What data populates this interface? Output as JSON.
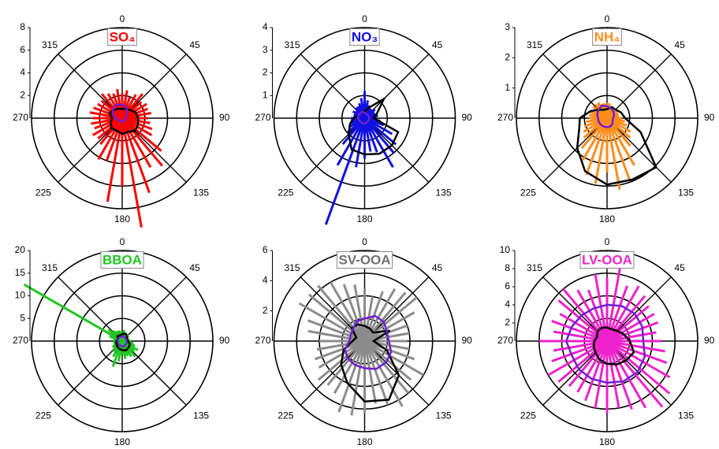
{
  "chart_data": [
    {
      "type": "polar",
      "title": "SO₄",
      "title_color": "#ff0000",
      "rlim": [
        0,
        8
      ],
      "rticks": [
        2,
        4,
        6,
        8
      ],
      "thetaticks": [
        0,
        45,
        90,
        135,
        180,
        225,
        270,
        315
      ],
      "series": [
        {
          "mode": "spikes",
          "color": "#ff0000",
          "theta": [
            0,
            10,
            20,
            30,
            40,
            50,
            60,
            70,
            80,
            90,
            100,
            110,
            120,
            130,
            140,
            150,
            160,
            170,
            180,
            190,
            200,
            210,
            220,
            230,
            240,
            250,
            260,
            270,
            280,
            290,
            300,
            310,
            320,
            330,
            340,
            350
          ],
          "values": [
            2.2,
            2.5,
            2.0,
            2.4,
            2.8,
            2.2,
            2.5,
            2.4,
            2.6,
            2.3,
            2.5,
            2.8,
            3.0,
            4.5,
            5.5,
            5.0,
            7.0,
            9.8,
            6.0,
            7.5,
            4.0,
            4.2,
            3.0,
            2.8,
            3.0,
            2.6,
            2.8,
            2.6,
            2.9,
            2.7,
            2.5,
            2.4,
            2.8,
            2.5,
            2.3,
            2.6
          ]
        },
        {
          "mode": "line",
          "color": "#000000",
          "theta": [
            0,
            22.5,
            45,
            67.5,
            90,
            112.5,
            135,
            157.5,
            180,
            202.5,
            225,
            247.5,
            270,
            292.5,
            315,
            337.5
          ],
          "values": [
            0.8,
            0.9,
            1.0,
            1.3,
            1.4,
            1.5,
            1.6,
            1.3,
            1.4,
            1.2,
            1.3,
            1.1,
            0.9,
            1.2,
            1.0,
            0.9
          ]
        },
        {
          "mode": "line",
          "color": "#7020d0",
          "theta": [
            0,
            22.5,
            45,
            67.5,
            90,
            112.5,
            135,
            157.5,
            180,
            202.5,
            225,
            247.5,
            270,
            292.5,
            315,
            337.5
          ],
          "values": [
            1.2,
            1.0,
            0.6,
            0.4,
            0.3,
            0.3,
            0.3,
            0.3,
            0.3,
            0.3,
            0.3,
            0.4,
            0.6,
            0.9,
            1.1,
            1.3
          ]
        }
      ]
    },
    {
      "type": "polar",
      "title": "NO₃",
      "title_color": "#1010e0",
      "rlim": [
        0,
        4
      ],
      "rticks": [
        1,
        2,
        3,
        4
      ],
      "thetaticks": [
        0,
        45,
        90,
        135,
        180,
        225,
        270,
        315
      ],
      "series": [
        {
          "mode": "spikes",
          "color": "#1010e0",
          "theta": [
            0,
            10,
            20,
            30,
            40,
            50,
            60,
            70,
            80,
            90,
            100,
            110,
            120,
            130,
            140,
            150,
            160,
            170,
            180,
            190,
            200,
            210,
            220,
            230,
            240,
            250,
            260,
            270,
            280,
            290,
            300,
            310,
            320,
            330,
            340,
            350
          ],
          "values": [
            1.2,
            0.8,
            0.6,
            0.5,
            0.5,
            0.6,
            0.5,
            0.5,
            0.6,
            0.5,
            0.7,
            0.9,
            1.4,
            1.8,
            2.0,
            2.5,
            1.6,
            1.5,
            1.8,
            2.2,
            5.0,
            2.4,
            1.5,
            1.0,
            0.8,
            0.7,
            0.6,
            0.6,
            0.5,
            0.5,
            0.6,
            0.5,
            0.6,
            0.6,
            0.7,
            0.9
          ]
        },
        {
          "mode": "line",
          "color": "#000000",
          "theta": [
            0,
            22.5,
            45,
            67.5,
            90,
            112.5,
            135,
            157.5,
            180,
            202.5,
            225,
            247.5,
            270,
            292.5,
            315,
            337.5
          ],
          "values": [
            0.3,
            0.5,
            1.2,
            0.6,
            0.4,
            1.6,
            1.7,
            1.7,
            1.6,
            1.5,
            1.0,
            0.7,
            0.5,
            0.3,
            0.3,
            0.3
          ]
        },
        {
          "mode": "line",
          "color": "#7020d0",
          "theta": [
            0,
            22.5,
            45,
            67.5,
            90,
            112.5,
            135,
            157.5,
            180,
            202.5,
            225,
            247.5,
            270,
            292.5,
            315,
            337.5
          ],
          "values": [
            0.25,
            0.2,
            0.2,
            0.2,
            0.2,
            0.2,
            0.2,
            0.2,
            0.25,
            0.25,
            0.25,
            0.25,
            0.3,
            0.3,
            0.3,
            0.3
          ]
        }
      ]
    },
    {
      "type": "polar",
      "title": "NH₄",
      "title_color": "#ff8c1a",
      "rlim": [
        0,
        3
      ],
      "rticks": [
        1,
        2,
        3
      ],
      "thetaticks": [
        0,
        45,
        90,
        135,
        180,
        225,
        270,
        315
      ],
      "series": [
        {
          "mode": "spikes",
          "color": "#ff8c1a",
          "theta": [
            0,
            10,
            20,
            30,
            40,
            50,
            60,
            70,
            80,
            90,
            100,
            110,
            120,
            130,
            140,
            150,
            160,
            170,
            180,
            190,
            200,
            210,
            220,
            230,
            240,
            250,
            260,
            270,
            280,
            290,
            300,
            310,
            320,
            330,
            340,
            350
          ],
          "values": [
            0.5,
            0.5,
            0.4,
            0.4,
            0.4,
            0.4,
            0.4,
            0.4,
            0.4,
            0.5,
            0.6,
            0.7,
            0.9,
            1.0,
            1.2,
            1.8,
            2.2,
            2.4,
            1.8,
            2.2,
            2.0,
            1.6,
            1.3,
            1.0,
            0.9,
            0.8,
            0.7,
            0.6,
            0.6,
            0.6,
            0.5,
            0.6,
            0.6,
            0.6,
            0.5,
            0.5
          ]
        },
        {
          "mode": "line",
          "color": "#000000",
          "theta": [
            0,
            22.5,
            45,
            67.5,
            90,
            112.5,
            135,
            157.5,
            180,
            202.5,
            225,
            247.5,
            270,
            292.5,
            315,
            337.5
          ],
          "values": [
            0.3,
            0.4,
            0.4,
            0.5,
            0.6,
            1.2,
            2.3,
            2.2,
            2.2,
            1.9,
            1.4,
            1.0,
            0.9,
            0.6,
            0.4,
            0.3
          ]
        },
        {
          "mode": "line",
          "color": "#7020d0",
          "theta": [
            0,
            22.5,
            45,
            67.5,
            90,
            112.5,
            135,
            157.5,
            180,
            202.5,
            225,
            247.5,
            270,
            292.5,
            315,
            337.5
          ],
          "values": [
            0.4,
            0.35,
            0.3,
            0.25,
            0.2,
            0.2,
            0.25,
            0.3,
            0.3,
            0.3,
            0.3,
            0.3,
            0.3,
            0.35,
            0.4,
            0.45
          ]
        }
      ]
    },
    {
      "type": "polar",
      "title": "BBOA",
      "title_color": "#22c422",
      "rlim": [
        0,
        20
      ],
      "rticks": [
        5,
        10,
        15,
        20
      ],
      "thetaticks": [
        0,
        45,
        90,
        135,
        180,
        225,
        270,
        315
      ],
      "series": [
        {
          "mode": "spikes",
          "color": "#22c422",
          "theta": [
            0,
            10,
            20,
            30,
            40,
            50,
            60,
            70,
            80,
            90,
            100,
            110,
            120,
            130,
            140,
            150,
            160,
            170,
            180,
            190,
            200,
            210,
            220,
            230,
            240,
            250,
            260,
            270,
            280,
            290,
            300,
            310,
            320,
            330,
            340,
            350
          ],
          "values": [
            2.0,
            2.5,
            2.0,
            1.8,
            2.0,
            1.8,
            1.5,
            1.5,
            1.6,
            2.0,
            2.5,
            3.0,
            4.0,
            3.5,
            4.5,
            4.0,
            3.5,
            4.0,
            3.0,
            4.5,
            6.0,
            4.0,
            3.0,
            2.5,
            2.5,
            2.0,
            2.0,
            2.0,
            2.0,
            3.0,
            25.0,
            4.0,
            3.0,
            2.5,
            2.5,
            2.2
          ]
        },
        {
          "mode": "line",
          "color": "#000000",
          "theta": [
            0,
            22.5,
            45,
            67.5,
            90,
            112.5,
            135,
            157.5,
            180,
            202.5,
            225,
            247.5,
            270,
            292.5,
            315,
            337.5
          ],
          "values": [
            1.5,
            1.8,
            1.5,
            1.2,
            1.3,
            1.8,
            2.0,
            2.2,
            2.0,
            1.8,
            1.6,
            1.4,
            1.3,
            1.0,
            1.5,
            1.4
          ]
        },
        {
          "mode": "line",
          "color": "#7020d0",
          "theta": [
            0,
            22.5,
            45,
            67.5,
            90,
            112.5,
            135,
            157.5,
            180,
            202.5,
            225,
            247.5,
            270,
            292.5,
            315,
            337.5
          ],
          "values": [
            1.0,
            1.0,
            1.0,
            1.0,
            1.0,
            1.1,
            1.1,
            1.2,
            1.2,
            1.1,
            1.1,
            1.0,
            1.0,
            1.0,
            1.0,
            1.0
          ]
        }
      ]
    },
    {
      "type": "polar",
      "title": "SV-OOA",
      "title_color": "#707070",
      "rlim": [
        0,
        6
      ],
      "rticks": [
        2,
        4,
        6
      ],
      "thetaticks": [
        0,
        45,
        90,
        135,
        180,
        225,
        270,
        315
      ],
      "series": [
        {
          "mode": "spikes",
          "color": "#8c8c8c",
          "theta": [
            0,
            10,
            20,
            30,
            40,
            50,
            60,
            70,
            80,
            90,
            100,
            110,
            120,
            130,
            140,
            150,
            160,
            170,
            180,
            190,
            200,
            210,
            220,
            230,
            240,
            250,
            260,
            270,
            280,
            290,
            300,
            310,
            320,
            330,
            340,
            350
          ],
          "values": [
            3.5,
            3.0,
            3.5,
            4.0,
            4.2,
            4.5,
            3.8,
            3.0,
            3.0,
            2.8,
            3.0,
            3.5,
            4.5,
            4.0,
            4.5,
            5.0,
            4.5,
            4.2,
            4.8,
            5.0,
            5.0,
            4.0,
            3.8,
            4.0,
            3.5,
            3.5,
            3.2,
            3.0,
            3.8,
            4.0,
            5.0,
            4.8,
            4.8,
            4.5,
            4.0,
            3.8
          ]
        },
        {
          "mode": "line",
          "color": "#000000",
          "theta": [
            0,
            22.5,
            45,
            67.5,
            90,
            112.5,
            135,
            157.5,
            180,
            202.5,
            225,
            247.5,
            270,
            292.5,
            315,
            337.5
          ],
          "values": [
            1.0,
            0.9,
            0.8,
            1.8,
            0.6,
            1.6,
            3.2,
            4.2,
            4.0,
            3.0,
            2.2,
            1.5,
            0.8,
            0.6,
            1.2,
            1.2
          ]
        },
        {
          "mode": "line",
          "color": "#7020d0",
          "theta": [
            0,
            22.5,
            45,
            67.5,
            90,
            112.5,
            135,
            157.5,
            180,
            202.5,
            225,
            247.5,
            270,
            292.5,
            315,
            337.5
          ],
          "values": [
            1.5,
            1.8,
            1.8,
            1.6,
            1.6,
            1.9,
            2.0,
            2.0,
            1.8,
            1.7,
            1.6,
            1.4,
            1.0,
            1.0,
            1.1,
            1.4
          ]
        }
      ]
    },
    {
      "type": "polar",
      "title": "LV-OOA",
      "title_color": "#ee22cc",
      "rlim": [
        0,
        10
      ],
      "rticks": [
        2,
        4,
        6,
        8,
        10
      ],
      "thetaticks": [
        0,
        45,
        90,
        135,
        180,
        225,
        270,
        315
      ],
      "series": [
        {
          "mode": "spikes",
          "color": "#ee22cc",
          "theta": [
            0,
            10,
            20,
            30,
            40,
            50,
            60,
            70,
            80,
            90,
            100,
            110,
            120,
            130,
            140,
            150,
            160,
            170,
            180,
            190,
            200,
            210,
            220,
            230,
            240,
            250,
            260,
            270,
            280,
            290,
            300,
            310,
            320,
            330,
            340,
            350
          ],
          "values": [
            7.0,
            8.5,
            6.5,
            7.0,
            6.5,
            6.0,
            6.0,
            6.0,
            5.5,
            6.0,
            6.5,
            7.0,
            8.0,
            9.0,
            9.5,
            8.5,
            8.0,
            7.5,
            8.0,
            7.5,
            7.0,
            6.5,
            6.5,
            7.0,
            7.5,
            6.5,
            6.0,
            7.5,
            6.0,
            6.5,
            6.0,
            7.0,
            7.5,
            6.5,
            6.0,
            7.5
          ]
        },
        {
          "mode": "line",
          "color": "#7020d0",
          "theta": [
            0,
            22.5,
            45,
            67.5,
            90,
            112.5,
            135,
            157.5,
            180,
            202.5,
            225,
            247.5,
            270,
            292.5,
            315,
            337.5
          ],
          "values": [
            4.0,
            4.2,
            4.3,
            4.2,
            4.0,
            4.5,
            4.8,
            4.8,
            4.6,
            4.5,
            4.4,
            4.2,
            4.5,
            4.2,
            4.0,
            3.9
          ]
        },
        {
          "mode": "line",
          "color": "#000000",
          "theta": [
            0,
            22.5,
            45,
            67.5,
            90,
            112.5,
            135,
            157.5,
            180,
            202.5,
            225,
            247.5,
            270,
            292.5,
            315,
            337.5
          ],
          "values": [
            1.5,
            1.4,
            1.6,
            2.0,
            2.5,
            3.2,
            3.0,
            2.8,
            2.5,
            2.2,
            1.8,
            1.6,
            1.4,
            1.2,
            1.5,
            1.6
          ]
        }
      ]
    }
  ]
}
